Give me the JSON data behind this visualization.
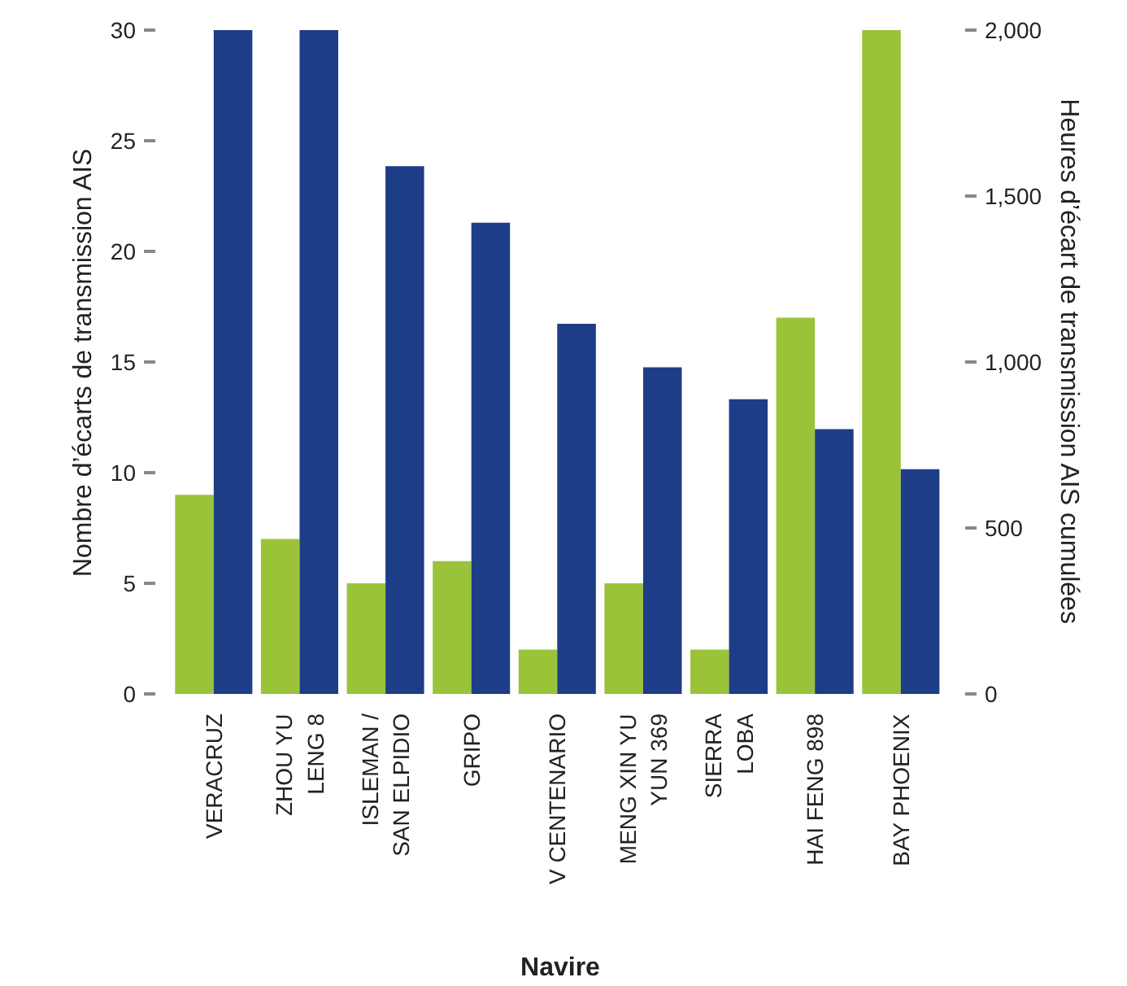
{
  "chart_data": {
    "type": "bar",
    "categories": [
      "VERACRUZ",
      "ZHOU YU\nLENG 8",
      "ISLEMAN /\nSAN ELPIDIO",
      "GRIPO",
      "V CENTENARIO",
      "MENG XIN YU\nYUN 369",
      "SIERRA\nLOBA",
      "HAI FENG 898",
      "BAY PHOENIX"
    ],
    "series": [
      {
        "color": "#9ac33a",
        "values": [
          9,
          7,
          5,
          6,
          2,
          5,
          2,
          17,
          30
        ]
      },
      {
        "color": "#1e3d87",
        "axis": "y2",
        "values": [
          2000,
          2000,
          1590,
          1420,
          1115,
          984,
          888,
          798,
          677
        ]
      }
    ],
    "xlabel": "Navire",
    "ylabel": "Nombre d’écarts de transmission AIS",
    "y2label": "Heures d’écart de transmission AIS cumulées",
    "ylim": [
      0,
      30
    ],
    "yticks": [
      0,
      5,
      10,
      15,
      20,
      25,
      30
    ],
    "y2lim": [
      0,
      2000
    ],
    "y2ticks": [
      0,
      {
        "value": 500,
        "label": "500"
      },
      {
        "value": 1000,
        "label": "1,000"
      },
      {
        "value": 1500,
        "label": "1,500"
      },
      {
        "value": 2000,
        "label": "2,000"
      }
    ],
    "grid": false
  }
}
